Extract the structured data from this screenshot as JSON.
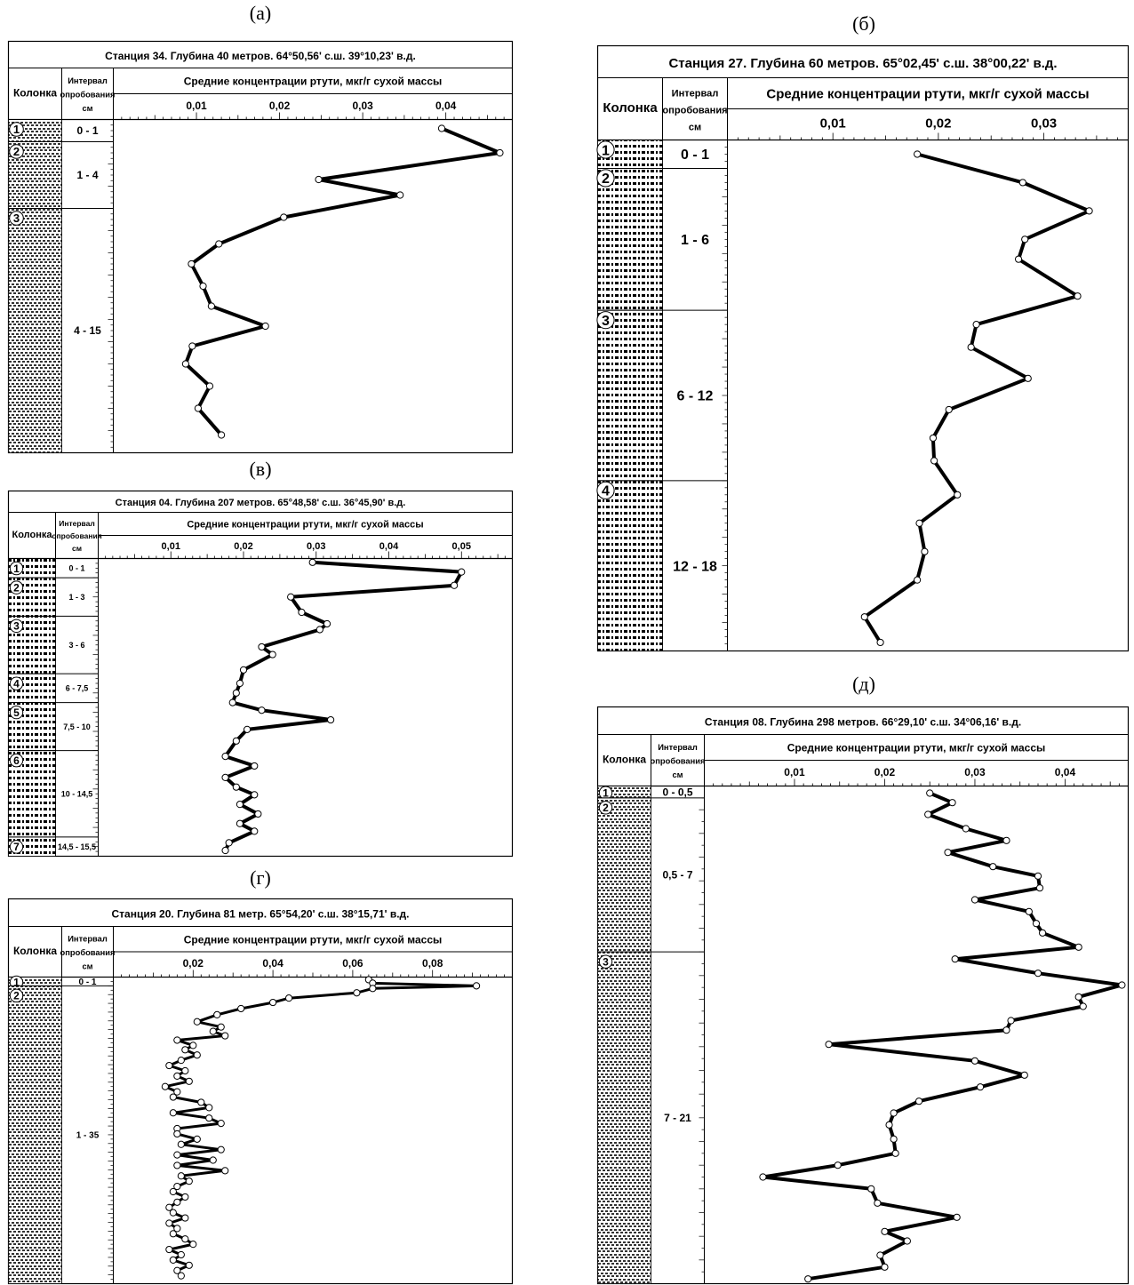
{
  "col_header": "Колонка",
  "interval_header": [
    "Интервал",
    "опробования",
    "см"
  ],
  "conc_header": "Средние концентрации ртути, мкг/г сухой массы",
  "chart_data": [
    {
      "id": "a",
      "type": "line",
      "panel_label": "(а)",
      "title": "Станция 34. Глубина 40 метров. 64°50,56' с.ш. 39°10,23' в.д.",
      "xlabel": "Средние концентрации ртути, мкг/г сухой массы",
      "x_ticks": [
        "0,01",
        "0,02",
        "0,03",
        "0,04"
      ],
      "xlim": [
        0,
        0.048
      ],
      "ylim": [
        0,
        15
      ],
      "grid": false,
      "layers": [
        {
          "num": "1",
          "interval": "0 - 1",
          "top": 0,
          "bottom": 1
        },
        {
          "num": "2",
          "interval": "1 - 4",
          "top": 1,
          "bottom": 4
        },
        {
          "num": "3",
          "interval": "4 - 15",
          "top": 4,
          "bottom": 15
        }
      ],
      "series": [
        {
          "points": [
            [
              0.0395,
              0.4
            ],
            [
              0.0465,
              1.5
            ],
            [
              0.0247,
              2.7
            ],
            [
              0.0345,
              3.4
            ],
            [
              0.0205,
              4.4
            ],
            [
              0.0127,
              5.6
            ],
            [
              0.0094,
              6.5
            ],
            [
              0.0108,
              7.5
            ],
            [
              0.0118,
              8.4
            ],
            [
              0.0183,
              9.3
            ],
            [
              0.0095,
              10.2
            ],
            [
              0.0087,
              11.0
            ],
            [
              0.0116,
              12.0
            ],
            [
              0.0102,
              13.0
            ],
            [
              0.013,
              14.2
            ]
          ]
        }
      ]
    },
    {
      "id": "b",
      "type": "line",
      "panel_label": "(б)",
      "title": "Станция 27. Глубина 60 метров. 65°02,45' с.ш. 38°00,22' в.д.",
      "xlabel": "Средние концентрации ртути, мкг/г сухой массы",
      "x_ticks": [
        "0,01",
        "0,02",
        "0,03"
      ],
      "xlim": [
        0,
        0.038
      ],
      "ylim": [
        0,
        18
      ],
      "grid": false,
      "layers": [
        {
          "num": "1",
          "interval": "0 - 1",
          "top": 0,
          "bottom": 1
        },
        {
          "num": "2",
          "interval": "1 - 6",
          "top": 1,
          "bottom": 6
        },
        {
          "num": "3",
          "interval": "6 - 12",
          "top": 6,
          "bottom": 12
        },
        {
          "num": "4",
          "interval": "12 - 18",
          "top": 12,
          "bottom": 18
        }
      ],
      "series": [
        {
          "points": [
            [
              0.018,
              0.5
            ],
            [
              0.028,
              1.5
            ],
            [
              0.0343,
              2.5
            ],
            [
              0.0282,
              3.5
            ],
            [
              0.0276,
              4.2
            ],
            [
              0.0332,
              5.5
            ],
            [
              0.0236,
              6.5
            ],
            [
              0.0231,
              7.3
            ],
            [
              0.0285,
              8.4
            ],
            [
              0.021,
              9.5
            ],
            [
              0.0195,
              10.5
            ],
            [
              0.0196,
              11.3
            ],
            [
              0.0218,
              12.5
            ],
            [
              0.0182,
              13.5
            ],
            [
              0.0187,
              14.5
            ],
            [
              0.018,
              15.5
            ],
            [
              0.013,
              16.8
            ],
            [
              0.0145,
              17.7
            ]
          ]
        }
      ]
    },
    {
      "id": "v",
      "type": "line",
      "panel_label": "(в)",
      "title": "Станция 04. Глубина 207 метров. 65°48,58' с.ш. 36°45,90' в.д.",
      "xlabel": "Средние концентрации ртути, мкг/г сухой массы",
      "x_ticks": [
        "0,01",
        "0,02",
        "0,03",
        "0,04",
        "0,05"
      ],
      "xlim": [
        0,
        0.057
      ],
      "ylim": [
        0,
        15.5
      ],
      "grid": false,
      "layers": [
        {
          "num": "1",
          "interval": "0 - 1",
          "top": 0,
          "bottom": 1
        },
        {
          "num": "2",
          "interval": "1 - 3",
          "top": 1,
          "bottom": 3
        },
        {
          "num": "3",
          "interval": "3 - 6",
          "top": 3,
          "bottom": 6
        },
        {
          "num": "4",
          "interval": "6 - 7,5",
          "top": 6,
          "bottom": 7.5
        },
        {
          "num": "5",
          "interval": "7,5 - 10",
          "top": 7.5,
          "bottom": 10
        },
        {
          "num": "6",
          "interval": "10 - 14,5",
          "top": 10,
          "bottom": 14.5
        },
        {
          "num": "7",
          "interval": "14,5 - 15,5",
          "top": 14.5,
          "bottom": 15.5
        }
      ],
      "series": [
        {
          "points": [
            [
              0.0295,
              0.2
            ],
            [
              0.05,
              0.7
            ],
            [
              0.049,
              1.4
            ],
            [
              0.0265,
              2.0
            ],
            [
              0.028,
              2.8
            ],
            [
              0.0315,
              3.4
            ],
            [
              0.0305,
              3.7
            ],
            [
              0.0225,
              4.6
            ],
            [
              0.024,
              5.0
            ],
            [
              0.02,
              5.8
            ],
            [
              0.0195,
              6.5
            ],
            [
              0.019,
              7.0
            ],
            [
              0.0185,
              7.5
            ],
            [
              0.0225,
              7.9
            ],
            [
              0.032,
              8.4
            ],
            [
              0.0205,
              8.9
            ],
            [
              0.019,
              9.5
            ],
            [
              0.0175,
              10.3
            ],
            [
              0.0215,
              10.8
            ],
            [
              0.0175,
              11.4
            ],
            [
              0.019,
              11.9
            ],
            [
              0.0215,
              12.3
            ],
            [
              0.0195,
              12.8
            ],
            [
              0.022,
              13.3
            ],
            [
              0.0195,
              13.8
            ],
            [
              0.0215,
              14.2
            ],
            [
              0.018,
              14.8
            ],
            [
              0.0175,
              15.2
            ]
          ]
        }
      ]
    },
    {
      "id": "g",
      "type": "line",
      "panel_label": "(г)",
      "title": "Станция 20. Глубина 81 метр. 65°54,20' с.ш. 38°15,71' в.д.",
      "xlabel": "Средние концентрации ртути, мкг/г сухой массы",
      "x_ticks": [
        "0,02",
        "0,04",
        "0,06",
        "0,08"
      ],
      "xlim": [
        0,
        0.1
      ],
      "ylim": [
        0,
        35
      ],
      "grid": false,
      "layers": [
        {
          "num": "1",
          "interval": "0 - 1",
          "top": 0,
          "bottom": 1
        },
        {
          "num": "2",
          "interval": "1 - 35",
          "top": 1,
          "bottom": 35
        }
      ],
      "series": [
        {
          "points": [
            [
              0.064,
              0.3
            ],
            [
              0.065,
              0.7
            ],
            [
              0.091,
              1.0
            ],
            [
              0.065,
              1.3
            ],
            [
              0.061,
              1.8
            ],
            [
              0.044,
              2.4
            ],
            [
              0.04,
              2.9
            ],
            [
              0.032,
              3.6
            ],
            [
              0.026,
              4.3
            ],
            [
              0.021,
              5.1
            ],
            [
              0.027,
              5.7
            ],
            [
              0.025,
              6.2
            ],
            [
              0.028,
              6.7
            ],
            [
              0.016,
              7.2
            ],
            [
              0.02,
              7.8
            ],
            [
              0.018,
              8.3
            ],
            [
              0.021,
              8.9
            ],
            [
              0.017,
              9.5
            ],
            [
              0.014,
              10.1
            ],
            [
              0.018,
              10.7
            ],
            [
              0.016,
              11.3
            ],
            [
              0.019,
              11.9
            ],
            [
              0.013,
              12.5
            ],
            [
              0.016,
              13.1
            ],
            [
              0.015,
              13.7
            ],
            [
              0.022,
              14.3
            ],
            [
              0.024,
              14.9
            ],
            [
              0.015,
              15.5
            ],
            [
              0.024,
              16.1
            ],
            [
              0.027,
              16.7
            ],
            [
              0.016,
              17.3
            ],
            [
              0.016,
              17.9
            ],
            [
              0.021,
              18.5
            ],
            [
              0.017,
              19.1
            ],
            [
              0.027,
              19.7
            ],
            [
              0.016,
              20.3
            ],
            [
              0.025,
              20.9
            ],
            [
              0.016,
              21.5
            ],
            [
              0.028,
              22.1
            ],
            [
              0.017,
              22.7
            ],
            [
              0.019,
              23.3
            ],
            [
              0.016,
              23.9
            ],
            [
              0.015,
              24.5
            ],
            [
              0.018,
              25.1
            ],
            [
              0.016,
              25.7
            ],
            [
              0.014,
              26.3
            ],
            [
              0.015,
              26.9
            ],
            [
              0.018,
              27.5
            ],
            [
              0.014,
              28.1
            ],
            [
              0.016,
              28.7
            ],
            [
              0.015,
              29.3
            ],
            [
              0.018,
              29.9
            ],
            [
              0.02,
              30.5
            ],
            [
              0.014,
              31.1
            ],
            [
              0.017,
              31.7
            ],
            [
              0.015,
              32.3
            ],
            [
              0.019,
              32.9
            ],
            [
              0.016,
              33.5
            ],
            [
              0.017,
              34.1
            ]
          ]
        }
      ]
    },
    {
      "id": "d",
      "type": "line",
      "panel_label": "(д)",
      "title": "Станция 08. Глубина 298 метров. 66°29,10' с.ш. 34°06,16' в.д.",
      "xlabel": "Средние концентрации ртути, мкг/г сухой массы",
      "x_ticks": [
        "0,01",
        "0,02",
        "0,03",
        "0,04"
      ],
      "xlim": [
        0,
        0.047
      ],
      "ylim": [
        0,
        21
      ],
      "grid": false,
      "layers": [
        {
          "num": "1",
          "interval": "0 - 0,5",
          "top": 0,
          "bottom": 0.5
        },
        {
          "num": "2",
          "interval": "0,5 - 7",
          "top": 0.5,
          "bottom": 7
        },
        {
          "num": "3",
          "interval": "7 - 21",
          "top": 7,
          "bottom": 21
        }
      ],
      "series": [
        {
          "points": [
            [
              0.025,
              0.3
            ],
            [
              0.0275,
              0.7
            ],
            [
              0.0248,
              1.2
            ],
            [
              0.029,
              1.8
            ],
            [
              0.0335,
              2.3
            ],
            [
              0.027,
              2.8
            ],
            [
              0.032,
              3.4
            ],
            [
              0.037,
              3.8
            ],
            [
              0.0372,
              4.3
            ],
            [
              0.03,
              4.8
            ],
            [
              0.036,
              5.3
            ],
            [
              0.0368,
              5.8
            ],
            [
              0.0375,
              6.2
            ],
            [
              0.0415,
              6.8
            ],
            [
              0.0278,
              7.3
            ],
            [
              0.037,
              7.9
            ],
            [
              0.0463,
              8.4
            ],
            [
              0.0415,
              8.9
            ],
            [
              0.042,
              9.3
            ],
            [
              0.034,
              9.9
            ],
            [
              0.0335,
              10.3
            ],
            [
              0.0138,
              10.9
            ],
            [
              0.03,
              11.6
            ],
            [
              0.0355,
              12.2
            ],
            [
              0.0306,
              12.7
            ],
            [
              0.0238,
              13.3
            ],
            [
              0.021,
              13.8
            ],
            [
              0.0205,
              14.3
            ],
            [
              0.021,
              14.9
            ],
            [
              0.0212,
              15.5
            ],
            [
              0.0148,
              16.0
            ],
            [
              0.0065,
              16.5
            ],
            [
              0.0185,
              17.0
            ],
            [
              0.0192,
              17.6
            ],
            [
              0.028,
              18.2
            ],
            [
              0.02,
              18.8
            ],
            [
              0.0225,
              19.2
            ],
            [
              0.0195,
              19.8
            ],
            [
              0.02,
              20.3
            ],
            [
              0.0115,
              20.8
            ]
          ]
        }
      ]
    }
  ]
}
